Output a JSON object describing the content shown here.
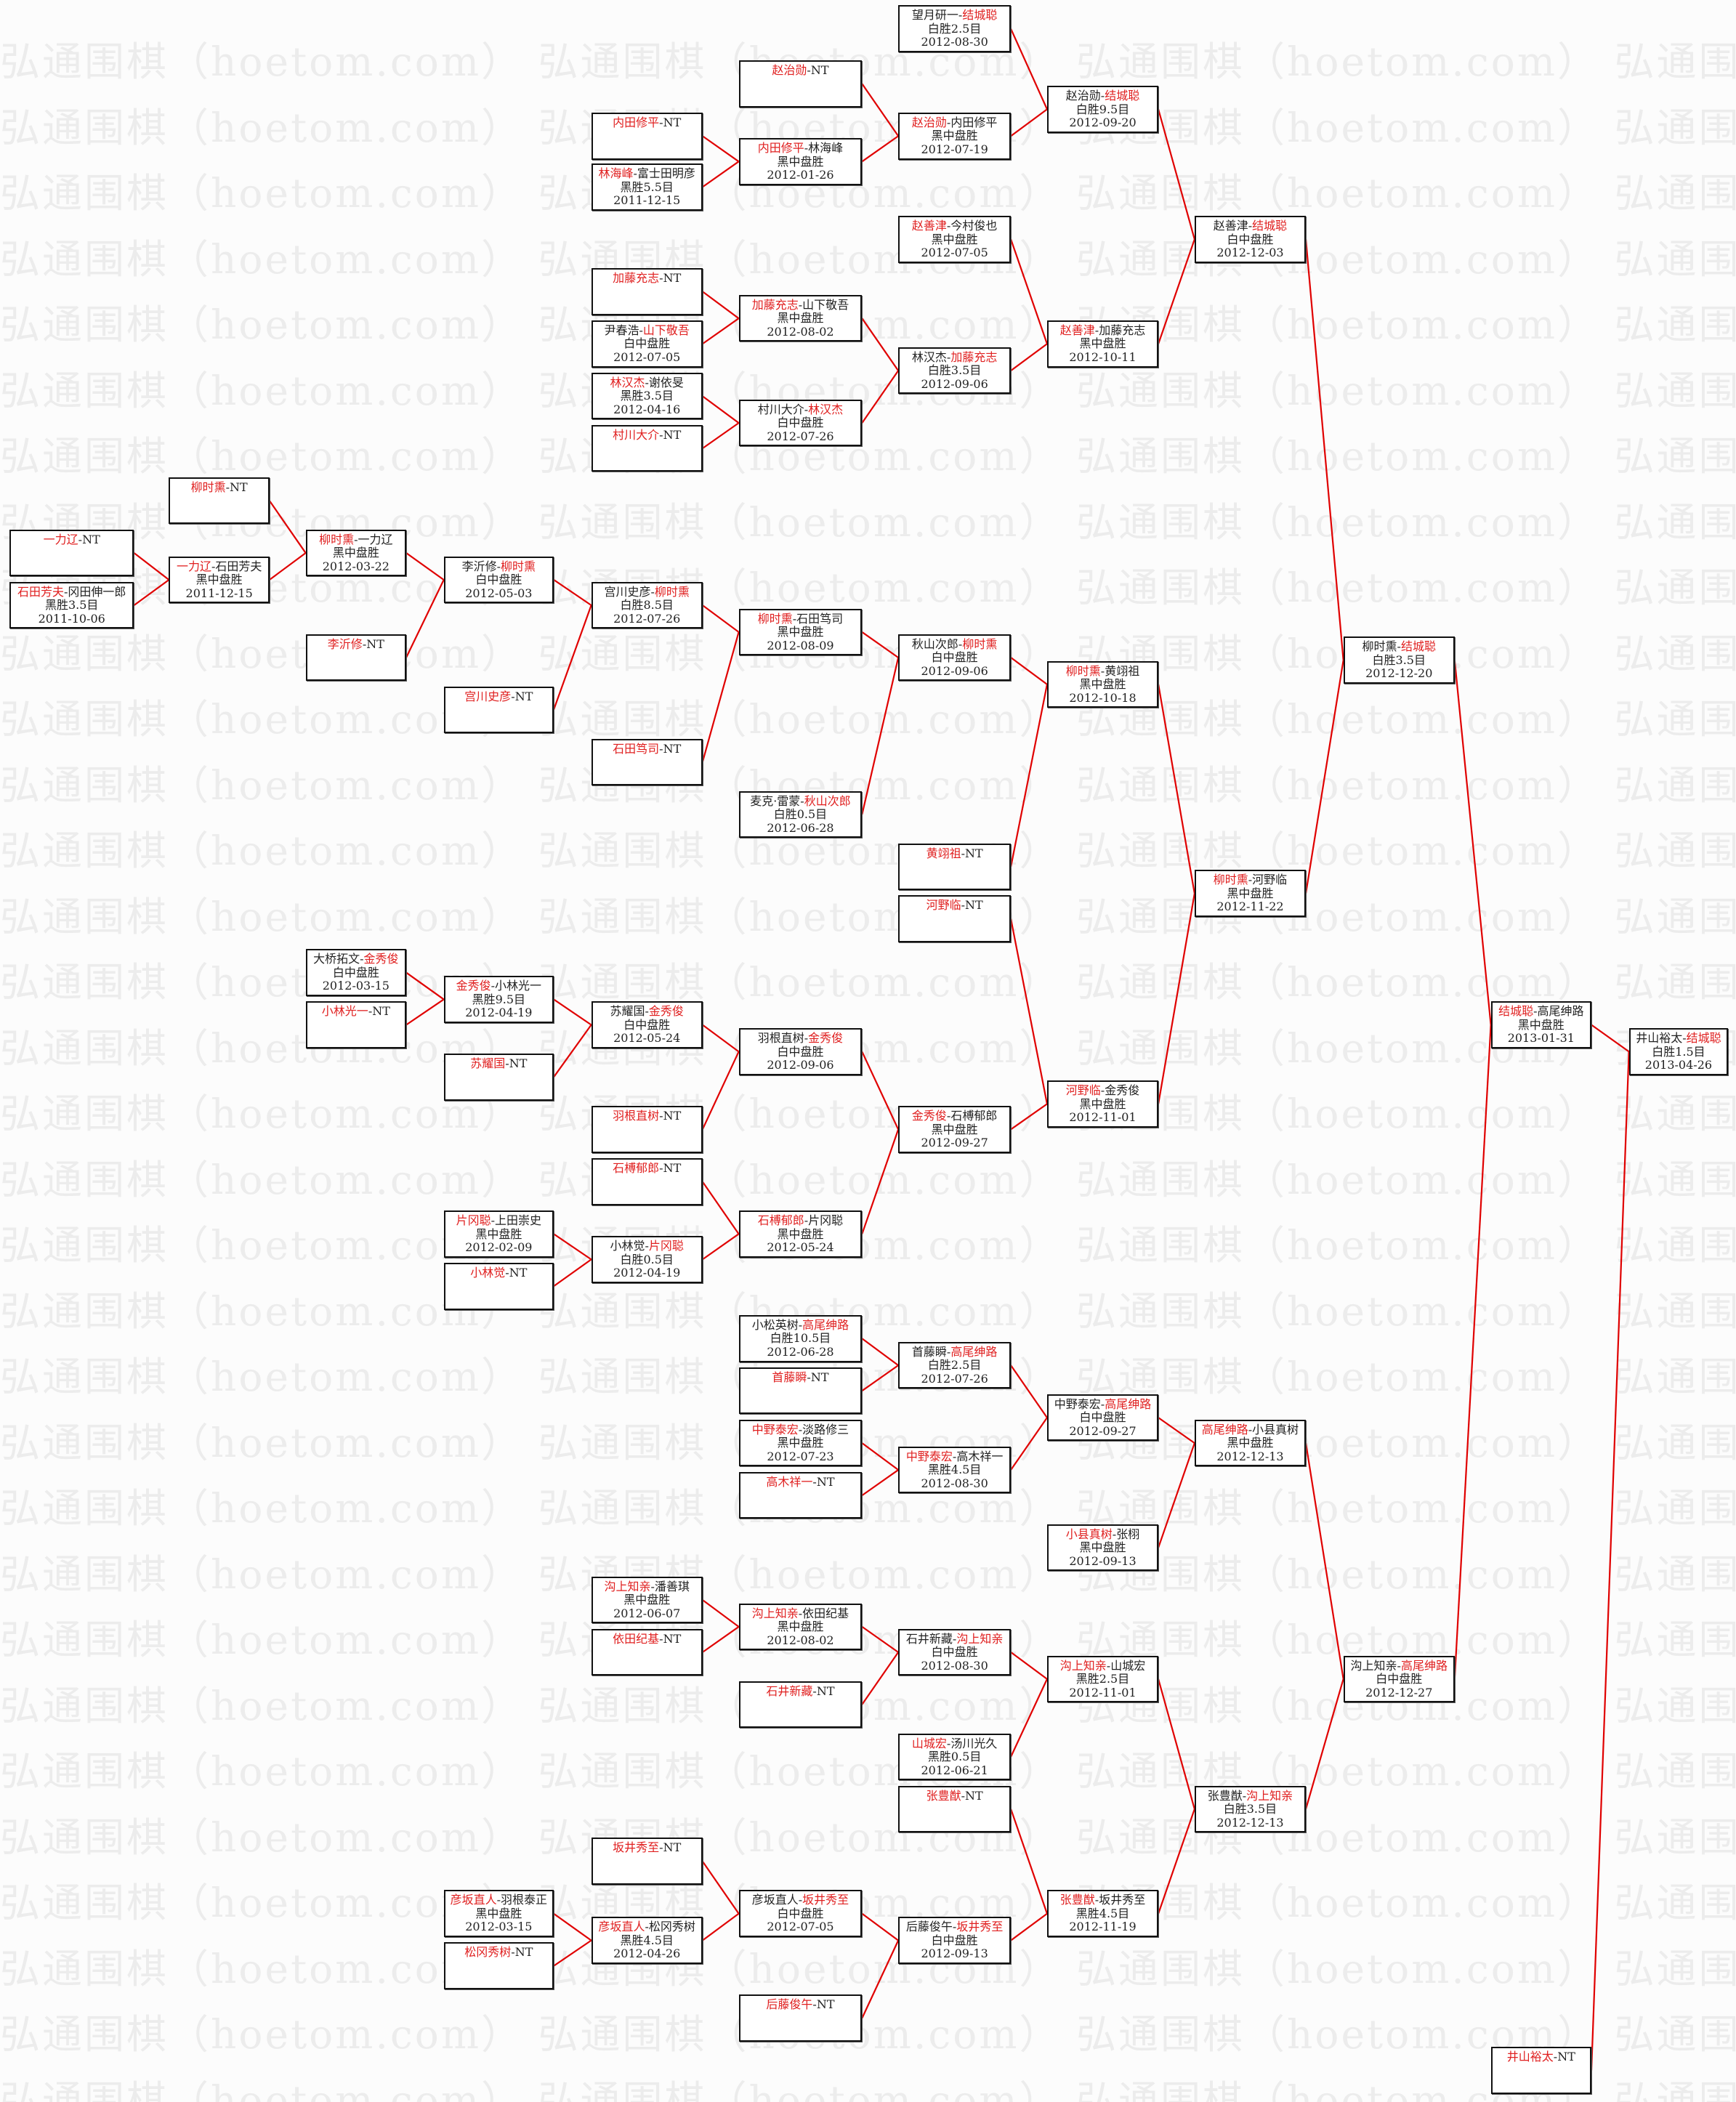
{
  "watermark": "弘通围棋（hoetom.com）",
  "separator": "-",
  "colors": {
    "winner": "#e02020",
    "line": "#e00000",
    "border": "#111111"
  },
  "matches": [
    {
      "players": [
        "望月研一",
        "结城聪"
      ],
      "winner": 1,
      "result": "白胜2.5目",
      "date": "2012-08-30"
    },
    {
      "players": [
        "赵治勋",
        "NT"
      ],
      "winner": 0
    },
    {
      "players": [
        "内田修平",
        "NT"
      ],
      "winner": 0
    },
    {
      "players": [
        "林海峰",
        "富士田明彦"
      ],
      "winner": 0,
      "result": "黑胜5.5目",
      "date": "2011-12-15"
    },
    {
      "players": [
        "内田修平",
        "林海峰"
      ],
      "winner": 0,
      "result": "黑中盘胜",
      "date": "2012-01-26"
    },
    {
      "players": [
        "赵治勋",
        "内田修平"
      ],
      "winner": 0,
      "result": "黑中盘胜",
      "date": "2012-07-19"
    },
    {
      "players": [
        "赵治勋",
        "结城聪"
      ],
      "winner": 1,
      "result": "白胜9.5目",
      "date": "2012-09-20"
    },
    {
      "players": [
        "赵善津",
        "今村俊也"
      ],
      "winner": 0,
      "result": "黑中盘胜",
      "date": "2012-07-05"
    },
    {
      "players": [
        "赵善津",
        "结城聪"
      ],
      "winner": 1,
      "result": "白中盘胜",
      "date": "2012-12-03"
    },
    {
      "players": [
        "加藤充志",
        "NT"
      ],
      "winner": 0
    },
    {
      "players": [
        "尹春浩",
        "山下敬吾"
      ],
      "winner": 1,
      "result": "白中盘胜",
      "date": "2012-07-05"
    },
    {
      "players": [
        "加藤充志",
        "山下敬吾"
      ],
      "winner": 0,
      "result": "黑中盘胜",
      "date": "2012-08-02"
    },
    {
      "players": [
        "林汉杰",
        "谢依旻"
      ],
      "winner": 0,
      "result": "黑胜3.5目",
      "date": "2012-04-16"
    },
    {
      "players": [
        "村川大介",
        "NT"
      ],
      "winner": 0
    },
    {
      "players": [
        "村川大介",
        "林汉杰"
      ],
      "winner": 1,
      "result": "白中盘胜",
      "date": "2012-07-26"
    },
    {
      "players": [
        "林汉杰",
        "加藤充志"
      ],
      "winner": 1,
      "result": "白胜3.5目",
      "date": "2012-09-06"
    },
    {
      "players": [
        "赵善津",
        "加藤充志"
      ],
      "winner": 0,
      "result": "黑中盘胜",
      "date": "2012-10-11"
    },
    {
      "players": [
        "柳时熏",
        "NT"
      ],
      "winner": 0
    },
    {
      "players": [
        "一力辽",
        "NT"
      ],
      "winner": 0
    },
    {
      "players": [
        "石田芳夫",
        "冈田伸一郎"
      ],
      "winner": 0,
      "result": "黑胜3.5目",
      "date": "2011-10-06"
    },
    {
      "players": [
        "一力辽",
        "石田芳夫"
      ],
      "winner": 0,
      "result": "黑中盘胜",
      "date": "2011-12-15"
    },
    {
      "players": [
        "柳时熏",
        "一力辽"
      ],
      "winner": 0,
      "result": "黑中盘胜",
      "date": "2012-03-22"
    },
    {
      "players": [
        "李沂修",
        "NT"
      ],
      "winner": 0
    },
    {
      "players": [
        "李沂修",
        "柳时熏"
      ],
      "winner": 1,
      "result": "白中盘胜",
      "date": "2012-05-03"
    },
    {
      "players": [
        "宫川史彦",
        "NT"
      ],
      "winner": 0
    },
    {
      "players": [
        "宫川史彦",
        "柳时熏"
      ],
      "winner": 1,
      "result": "白胜8.5目",
      "date": "2012-07-26"
    },
    {
      "players": [
        "石田笃司",
        "NT"
      ],
      "winner": 0
    },
    {
      "players": [
        "柳时熏",
        "石田笃司"
      ],
      "winner": 0,
      "result": "黑中盘胜",
      "date": "2012-08-09"
    },
    {
      "players": [
        "麦克·雷蒙",
        "秋山次郎"
      ],
      "winner": 1,
      "result": "白胜0.5目",
      "date": "2012-06-28"
    },
    {
      "players": [
        "秋山次郎",
        "柳时熏"
      ],
      "winner": 1,
      "result": "白中盘胜",
      "date": "2012-09-06"
    },
    {
      "players": [
        "黄翊祖",
        "NT"
      ],
      "winner": 0
    },
    {
      "players": [
        "河野临",
        "NT"
      ],
      "winner": 0
    },
    {
      "players": [
        "柳时熏",
        "黄翊祖"
      ],
      "winner": 0,
      "result": "黑中盘胜",
      "date": "2012-10-18"
    },
    {
      "players": [
        "柳时熏",
        "河野临"
      ],
      "winner": 0,
      "result": "黑中盘胜",
      "date": "2012-11-22"
    },
    {
      "players": [
        "柳时熏",
        "结城聪"
      ],
      "winner": 1,
      "result": "白胜3.5目",
      "date": "2012-12-20"
    },
    {
      "players": [
        "大桥拓文",
        "金秀俊"
      ],
      "winner": 1,
      "result": "白中盘胜",
      "date": "2012-03-15"
    },
    {
      "players": [
        "小林光一",
        "NT"
      ],
      "winner": 0
    },
    {
      "players": [
        "金秀俊",
        "小林光一"
      ],
      "winner": 0,
      "result": "黑胜9.5目",
      "date": "2012-04-19"
    },
    {
      "players": [
        "苏耀国",
        "NT"
      ],
      "winner": 0
    },
    {
      "players": [
        "苏耀国",
        "金秀俊"
      ],
      "winner": 1,
      "result": "白中盘胜",
      "date": "2012-05-24"
    },
    {
      "players": [
        "羽根直树",
        "NT"
      ],
      "winner": 0
    },
    {
      "players": [
        "羽根直树",
        "金秀俊"
      ],
      "winner": 1,
      "result": "白中盘胜",
      "date": "2012-09-06"
    },
    {
      "players": [
        "石榑郁郎",
        "NT"
      ],
      "winner": 0
    },
    {
      "players": [
        "片冈聪",
        "上田崇史"
      ],
      "winner": 0,
      "result": "黑中盘胜",
      "date": "2012-02-09"
    },
    {
      "players": [
        "小林觉",
        "NT"
      ],
      "winner": 0
    },
    {
      "players": [
        "小林觉",
        "片冈聪"
      ],
      "winner": 1,
      "result": "白胜0.5目",
      "date": "2012-04-19"
    },
    {
      "players": [
        "石榑郁郎",
        "片冈聪"
      ],
      "winner": 0,
      "result": "黑中盘胜",
      "date": "2012-05-24"
    },
    {
      "players": [
        "金秀俊",
        "石榑郁郎"
      ],
      "winner": 0,
      "result": "黑中盘胜",
      "date": "2012-09-27"
    },
    {
      "players": [
        "河野临",
        "金秀俊"
      ],
      "winner": 0,
      "result": "黑中盘胜",
      "date": "2012-11-01"
    },
    {
      "players": [
        "小松英树",
        "高尾绅路"
      ],
      "winner": 1,
      "result": "白胜10.5目",
      "date": "2012-06-28"
    },
    {
      "players": [
        "首藤瞬",
        "NT"
      ],
      "winner": 0
    },
    {
      "players": [
        "首藤瞬",
        "高尾绅路"
      ],
      "winner": 1,
      "result": "白胜2.5目",
      "date": "2012-07-26"
    },
    {
      "players": [
        "中野泰宏",
        "淡路修三"
      ],
      "winner": 0,
      "result": "黑中盘胜",
      "date": "2012-07-23"
    },
    {
      "players": [
        "高木祥一",
        "NT"
      ],
      "winner": 0
    },
    {
      "players": [
        "中野泰宏",
        "高木祥一"
      ],
      "winner": 0,
      "result": "黑胜4.5目",
      "date": "2012-08-30"
    },
    {
      "players": [
        "中野泰宏",
        "高尾绅路"
      ],
      "winner": 1,
      "result": "白中盘胜",
      "date": "2012-09-27"
    },
    {
      "players": [
        "小县真树",
        "张栩"
      ],
      "winner": 0,
      "result": "黑中盘胜",
      "date": "2012-09-13"
    },
    {
      "players": [
        "高尾绅路",
        "小县真树"
      ],
      "winner": 0,
      "result": "黑中盘胜",
      "date": "2012-12-13"
    },
    {
      "players": [
        "沟上知亲",
        "潘善琪"
      ],
      "winner": 0,
      "result": "黑中盘胜",
      "date": "2012-06-07"
    },
    {
      "players": [
        "依田纪基",
        "NT"
      ],
      "winner": 0
    },
    {
      "players": [
        "沟上知亲",
        "依田纪基"
      ],
      "winner": 0,
      "result": "黑中盘胜",
      "date": "2012-08-02"
    },
    {
      "players": [
        "石井新藏",
        "NT"
      ],
      "winner": 0
    },
    {
      "players": [
        "石井新藏",
        "沟上知亲"
      ],
      "winner": 1,
      "result": "白中盘胜",
      "date": "2012-08-30"
    },
    {
      "players": [
        "山城宏",
        "汤川光久"
      ],
      "winner": 0,
      "result": "黑胜0.5目",
      "date": "2012-06-21"
    },
    {
      "players": [
        "沟上知亲",
        "山城宏"
      ],
      "winner": 0,
      "result": "黑胜2.5目",
      "date": "2012-11-01"
    },
    {
      "players": [
        "张豊猷",
        "NT"
      ],
      "winner": 0
    },
    {
      "players": [
        "坂井秀至",
        "NT"
      ],
      "winner": 0
    },
    {
      "players": [
        "彦坂直人",
        "羽根泰正"
      ],
      "winner": 0,
      "result": "黑中盘胜",
      "date": "2012-03-15"
    },
    {
      "players": [
        "松冈秀树",
        "NT"
      ],
      "winner": 0
    },
    {
      "players": [
        "彦坂直人",
        "松冈秀树"
      ],
      "winner": 0,
      "result": "黑胜4.5目",
      "date": "2012-04-26"
    },
    {
      "players": [
        "彦坂直人",
        "坂井秀至"
      ],
      "winner": 1,
      "result": "白中盘胜",
      "date": "2012-07-05"
    },
    {
      "players": [
        "后藤俊午",
        "NT"
      ],
      "winner": 0
    },
    {
      "players": [
        "后藤俊午",
        "坂井秀至"
      ],
      "winner": 1,
      "result": "白中盘胜",
      "date": "2012-09-13"
    },
    {
      "players": [
        "张豊猷",
        "坂井秀至"
      ],
      "winner": 0,
      "result": "黑胜4.5目",
      "date": "2012-11-19"
    },
    {
      "players": [
        "张豊猷",
        "沟上知亲"
      ],
      "winner": 1,
      "result": "白胜3.5目",
      "date": "2012-12-13"
    },
    {
      "players": [
        "沟上知亲",
        "高尾绅路"
      ],
      "winner": 1,
      "result": "白中盘胜",
      "date": "2012-12-27"
    },
    {
      "players": [
        "结城聪",
        "高尾绅路"
      ],
      "winner": 0,
      "result": "黑中盘胜",
      "date": "2013-01-31"
    },
    {
      "players": [
        "井山裕太",
        "结城聪"
      ],
      "winner": 1,
      "result": "白胜1.5目",
      "date": "2013-04-26"
    },
    {
      "players": [
        "井山裕太",
        "NT"
      ],
      "winner": 0
    }
  ]
}
